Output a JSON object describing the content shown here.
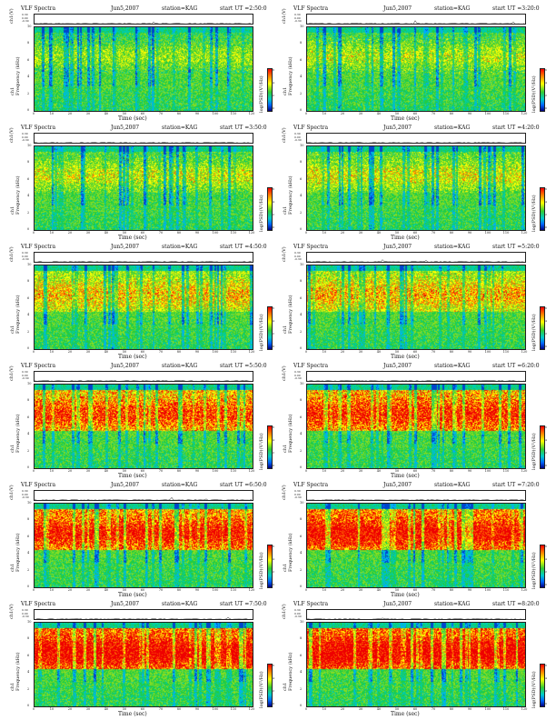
{
  "common": {
    "title": "VLF Spectra",
    "date": "Jun5,2007",
    "station": "station=KAG",
    "ts_label": "ch1(V)",
    "ts_ticks": [
      "0.30",
      "0.00",
      "-0.30"
    ],
    "ylabel_line1": "ch1",
    "ylabel_line2": "Frequency (kHz)",
    "xlabel": "Time (sec)",
    "cbar_label": "log(PSD)(V²/Hz)",
    "cbar_ticks": [
      "6",
      "4",
      "2",
      "0"
    ],
    "colors": {
      "background": "#ffffff",
      "red": "#ff0000",
      "yellow": "#ffff00",
      "green": "#33cc33",
      "cyan": "#00cccc",
      "blue": "#0066ff"
    }
  },
  "chart_data": [
    {
      "type": "heatmap",
      "start": "start UT =2:50:0",
      "xlim": [
        0,
        120
      ],
      "ylim": [
        0,
        10
      ],
      "xticks": [
        0,
        10,
        20,
        30,
        40,
        50,
        60,
        70,
        80,
        90,
        100,
        110,
        120
      ],
      "yticks": [
        0,
        2,
        4,
        6,
        8,
        10
      ],
      "intensity": 0.45
    },
    {
      "type": "heatmap",
      "start": "start UT =3:20:0",
      "xlim": [
        0,
        120
      ],
      "ylim": [
        0,
        10
      ],
      "xticks": [
        0,
        10,
        20,
        30,
        40,
        50,
        60,
        70,
        80,
        90,
        100,
        110,
        120
      ],
      "yticks": [
        0,
        2,
        4,
        6,
        8,
        10
      ],
      "intensity": 0.48
    },
    {
      "type": "heatmap",
      "start": "start UT =3:50:0",
      "xlim": [
        0,
        120
      ],
      "ylim": [
        0,
        10
      ],
      "xticks": [
        0,
        10,
        20,
        30,
        40,
        50,
        60,
        70,
        80,
        90,
        100,
        110,
        120
      ],
      "yticks": [
        0,
        2,
        4,
        6,
        8,
        10
      ],
      "intensity": 0.5
    },
    {
      "type": "heatmap",
      "start": "start UT =4:20:0",
      "xlim": [
        0,
        120
      ],
      "ylim": [
        0,
        10
      ],
      "xticks": [
        0,
        10,
        20,
        30,
        40,
        50,
        60,
        70,
        80,
        90,
        100,
        110,
        120
      ],
      "yticks": [
        0,
        2,
        4,
        6,
        8,
        10
      ],
      "intensity": 0.52
    },
    {
      "type": "heatmap",
      "start": "start UT =4:50:0",
      "xlim": [
        0,
        120
      ],
      "ylim": [
        0,
        10
      ],
      "xticks": [
        0,
        10,
        20,
        30,
        40,
        50,
        60,
        70,
        80,
        90,
        100,
        110,
        120
      ],
      "yticks": [
        0,
        2,
        4,
        6,
        8,
        10
      ],
      "intensity": 0.6
    },
    {
      "type": "heatmap",
      "start": "start UT =5:20:0",
      "xlim": [
        0,
        120
      ],
      "ylim": [
        0,
        10
      ],
      "xticks": [
        0,
        10,
        20,
        30,
        40,
        50,
        60,
        70,
        80,
        90,
        100,
        110,
        120
      ],
      "yticks": [
        0,
        2,
        4,
        6,
        8,
        10
      ],
      "intensity": 0.62
    },
    {
      "type": "heatmap",
      "start": "start UT =5:50:0",
      "xlim": [
        0,
        120
      ],
      "ylim": [
        0,
        10
      ],
      "xticks": [
        0,
        10,
        20,
        30,
        40,
        50,
        60,
        70,
        80,
        90,
        100,
        110,
        120
      ],
      "yticks": [
        0,
        2,
        4,
        6,
        8,
        10
      ],
      "intensity": 0.75
    },
    {
      "type": "heatmap",
      "start": "start UT =6:20:0",
      "xlim": [
        0,
        120
      ],
      "ylim": [
        0,
        10
      ],
      "xticks": [
        0,
        10,
        20,
        30,
        40,
        50,
        60,
        70,
        80,
        90,
        100,
        110,
        120
      ],
      "yticks": [
        0,
        2,
        4,
        6,
        8,
        10
      ],
      "intensity": 0.78
    },
    {
      "type": "heatmap",
      "start": "start UT =6:50:0",
      "xlim": [
        0,
        120
      ],
      "ylim": [
        0,
        10
      ],
      "xticks": [
        0,
        10,
        20,
        30,
        40,
        50,
        60,
        70,
        80,
        90,
        100,
        110,
        120
      ],
      "yticks": [
        0,
        2,
        4,
        6,
        8,
        10
      ],
      "intensity": 0.8
    },
    {
      "type": "heatmap",
      "start": "start UT =7:20:0",
      "xlim": [
        0,
        120
      ],
      "ylim": [
        0,
        10
      ],
      "xticks": [
        0,
        10,
        20,
        30,
        40,
        50,
        60,
        70,
        80,
        90,
        100,
        110,
        120
      ],
      "yticks": [
        0,
        2,
        4,
        6,
        8,
        10
      ],
      "intensity": 0.82
    },
    {
      "type": "heatmap",
      "start": "start UT =7:50:0",
      "xlim": [
        0,
        120
      ],
      "ylim": [
        0,
        10
      ],
      "xticks": [
        0,
        10,
        20,
        30,
        40,
        50,
        60,
        70,
        80,
        90,
        100,
        110,
        120
      ],
      "yticks": [
        0,
        2,
        4,
        6,
        8,
        10
      ],
      "intensity": 0.85
    },
    {
      "type": "heatmap",
      "start": "start UT =8:20:0",
      "xlim": [
        0,
        120
      ],
      "ylim": [
        0,
        10
      ],
      "xticks": [
        0,
        10,
        20,
        30,
        40,
        50,
        60,
        70,
        80,
        90,
        100,
        110,
        120
      ],
      "yticks": [
        0,
        2,
        4,
        6,
        8,
        10
      ],
      "intensity": 0.86
    }
  ]
}
